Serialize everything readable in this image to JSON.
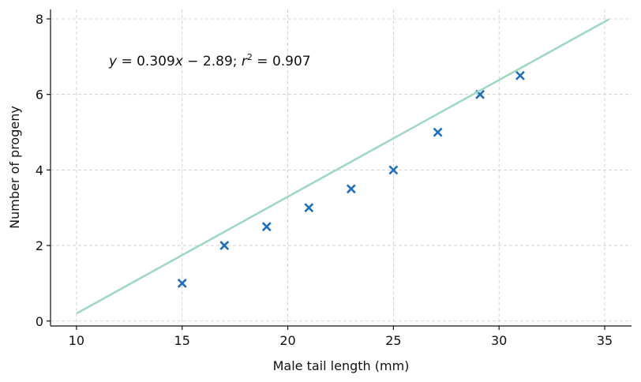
{
  "chart_data": {
    "type": "scatter",
    "xlabel": "Male tail length (mm)",
    "ylabel": "Number of progeny",
    "annotation": [
      "y",
      " = 0.309",
      "x",
      " − 2.89; ",
      "r",
      "2",
      " = 0.907"
    ],
    "series": [
      {
        "marker": "x",
        "color": "#1f6fb8",
        "x": [
          15,
          17,
          19,
          21,
          23,
          25,
          27.1,
          29.1,
          31
        ],
        "values": [
          1,
          2,
          2.5,
          3,
          3.5,
          4,
          5,
          6,
          6.5
        ]
      },
      {
        "marker": "line",
        "color": "#9dd7c2",
        "x": [
          10,
          35.2
        ],
        "values": [
          0.2,
          7.99
        ]
      }
    ],
    "xlim": [
      8.77,
      36.27
    ],
    "ylim": [
      -0.13,
      8.25
    ],
    "xticks": [
      10,
      15,
      20,
      25,
      30,
      35
    ],
    "yticks": [
      0,
      2,
      4,
      6,
      8
    ],
    "grid": true
  }
}
